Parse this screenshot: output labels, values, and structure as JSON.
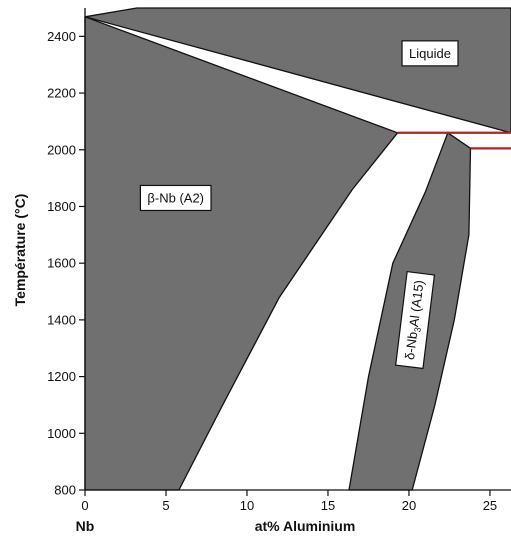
{
  "chart_data": {
    "type": "area",
    "title": "",
    "xlabel": "at% Aluminium",
    "x_endpoint_label": "Nb",
    "ylabel": "Température (°C)",
    "xlim": [
      0,
      26.3
    ],
    "ylim": [
      800,
      2500
    ],
    "x_ticks": [
      0,
      5,
      10,
      15,
      20,
      25
    ],
    "y_ticks": [
      800,
      1000,
      1200,
      1400,
      1600,
      1800,
      2000,
      2200,
      2400
    ],
    "grid": false,
    "colors": {
      "phase_fill": "#707070",
      "phase_boundary": "#111111",
      "invariant_line": "#b22222"
    },
    "region_labels": [
      {
        "text": "Liquide",
        "x": 21.3,
        "y": 2340,
        "rotation": 0
      },
      {
        "text": "β-Nb (A2)",
        "x": 5.6,
        "y": 1830,
        "rotation": 0
      },
      {
        "text": "δ-Nb",
        "sub": "3",
        "text_after": "Al (A15)",
        "x": 20.3,
        "y": 1400,
        "rotation": -83
      }
    ],
    "regions": [
      {
        "name": "bcc-solid-solution-region",
        "points": [
          [
            0,
            800
          ],
          [
            0,
            2469
          ],
          [
            19.3,
            2060
          ],
          [
            16.5,
            1860
          ],
          [
            12.0,
            1480
          ],
          [
            8.5,
            1100
          ],
          [
            5.8,
            800
          ]
        ]
      },
      {
        "name": "a15-phase-region",
        "points": [
          [
            16.3,
            800
          ],
          [
            17.5,
            1200
          ],
          [
            19.0,
            1600
          ],
          [
            21.0,
            1850
          ],
          [
            22.4,
            2060
          ],
          [
            23.8,
            2005
          ],
          [
            23.7,
            1700
          ],
          [
            22.8,
            1400
          ],
          [
            21.6,
            1100
          ],
          [
            20.2,
            800
          ]
        ]
      },
      {
        "name": "liquid-composition-region",
        "points": [
          [
            0,
            2469
          ],
          [
            26.3,
            2060
          ],
          [
            26.3,
            2500
          ],
          [
            3.2,
            2500
          ]
        ]
      }
    ],
    "invariant_lines": [
      {
        "name": "peritectic-line-2060",
        "x": [
          19.3,
          26.3
        ],
        "y": [
          2060,
          2060
        ]
      },
      {
        "name": "peritectic-line-2005",
        "x": [
          23.8,
          26.3
        ],
        "y": [
          2005,
          2005
        ]
      }
    ]
  }
}
